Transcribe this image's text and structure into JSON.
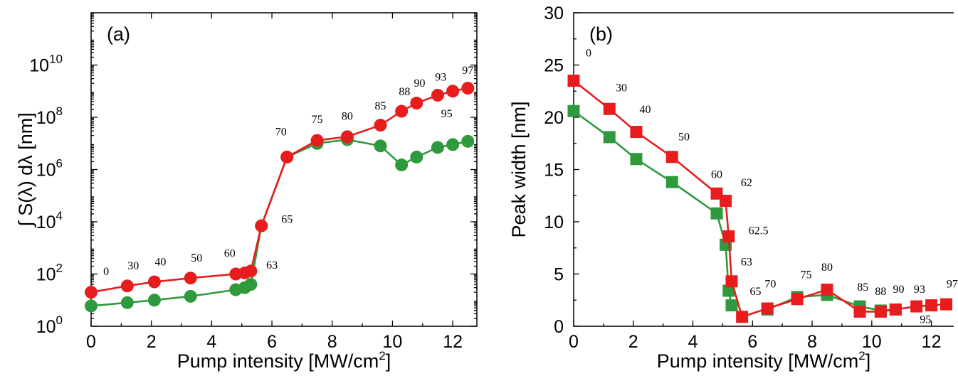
{
  "chart_data": [
    {
      "type": "line",
      "panel_label": "(a)",
      "xlabel": "Pump intensity [MW/cm",
      "xlabel_sup": "2",
      "xlabel_end": "]",
      "ylabel": "∫ S(λ) dλ  [nm]",
      "yscale": "log",
      "xlim": [
        0,
        13
      ],
      "ylim": [
        1,
        100000000000000
      ],
      "xticks": [
        "0",
        "2",
        "4",
        "6",
        "8",
        "10",
        "12"
      ],
      "yticks": [
        {
          "base": "10",
          "exp": "0"
        },
        {
          "base": "10",
          "exp": "2"
        },
        {
          "base": "10",
          "exp": "4"
        },
        {
          "base": "10",
          "exp": "6"
        },
        {
          "base": "10",
          "exp": "8"
        },
        {
          "base": "10",
          "exp": "10"
        }
      ],
      "series": [
        {
          "color": "#e81c1c",
          "marker": "circle",
          "x": [
            0,
            1.2,
            2.1,
            3.3,
            4.8,
            5.1,
            5.3,
            5.65,
            6.5,
            7.5,
            8.5,
            9.6,
            10.3,
            10.8,
            11.5,
            12.0,
            12.5
          ],
          "y": [
            20,
            35,
            50,
            70,
            100,
            110,
            130,
            7000,
            3000000,
            13000000,
            18000000,
            50000000,
            170000000,
            350000000,
            700000000,
            1000000000,
            1300000000
          ]
        },
        {
          "color": "#2e9a3d",
          "marker": "circle",
          "x": [
            0,
            1.2,
            2.1,
            3.3,
            4.8,
            5.1,
            5.3,
            5.65,
            6.5,
            7.5,
            8.5,
            9.6,
            10.3,
            10.8,
            11.5,
            12.0,
            12.5
          ],
          "y": [
            6,
            8,
            10,
            14,
            25,
            30,
            40,
            7000,
            3000000,
            10000000,
            14000000,
            8000000,
            1500000,
            3000000,
            7000000,
            9000000,
            12000000
          ]
        }
      ],
      "annotations": [
        {
          "text": "0",
          "x": 0.5,
          "y": 90
        },
        {
          "text": "30",
          "x": 1.4,
          "y": 150
        },
        {
          "text": "40",
          "x": 2.3,
          "y": 210
        },
        {
          "text": "50",
          "x": 3.5,
          "y": 300
        },
        {
          "text": "60",
          "x": 4.6,
          "y": 450
        },
        {
          "text": "63",
          "x": 6.0,
          "y": 160
        },
        {
          "text": "65",
          "x": 6.5,
          "y": 9000
        },
        {
          "text": "70",
          "x": 6.3,
          "y": 20000000
        },
        {
          "text": "75",
          "x": 7.5,
          "y": 60000000
        },
        {
          "text": "80",
          "x": 8.5,
          "y": 80000000
        },
        {
          "text": "85",
          "x": 9.6,
          "y": 200000000
        },
        {
          "text": "88",
          "x": 10.4,
          "y": 700000000
        },
        {
          "text": "90",
          "x": 10.9,
          "y": 1500000000
        },
        {
          "text": "93",
          "x": 11.6,
          "y": 2500000000
        },
        {
          "text": "95",
          "x": 11.8,
          "y": 100000000
        },
        {
          "text": "97",
          "x": 12.5,
          "y": 4500000000
        }
      ]
    },
    {
      "type": "line",
      "panel_label": "(b)",
      "xlabel": "Pump intensity [MW/cm",
      "xlabel_sup": "2",
      "xlabel_end": "]",
      "ylabel": "Peak width [nm]",
      "yscale": "linear",
      "xlim": [
        0,
        13
      ],
      "ylim": [
        0,
        30
      ],
      "xticks": [
        "0",
        "2",
        "4",
        "6",
        "8",
        "10",
        "12"
      ],
      "yticks": [
        "0",
        "5",
        "10",
        "15",
        "20",
        "25",
        "30"
      ],
      "series": [
        {
          "color": "#e81c1c",
          "marker": "square",
          "x": [
            0,
            1.2,
            2.1,
            3.3,
            4.8,
            5.1,
            5.2,
            5.3,
            5.65,
            6.5,
            7.5,
            8.5,
            9.6,
            10.3,
            10.8,
            11.5,
            12.0,
            12.5
          ],
          "y": [
            23.5,
            20.8,
            18.6,
            16.2,
            12.7,
            12.0,
            8.6,
            4.3,
            0.9,
            1.7,
            2.6,
            3.5,
            1.4,
            1.4,
            1.6,
            1.9,
            2.0,
            2.1
          ]
        },
        {
          "color": "#2e9a3d",
          "marker": "square",
          "x": [
            0,
            1.2,
            2.1,
            3.3,
            4.8,
            5.1,
            5.2,
            5.3
          ],
          "y": [
            20.6,
            18.1,
            16.0,
            13.8,
            10.8,
            7.8,
            3.4,
            2.0
          ]
        },
        {
          "color": "#2e9a3d",
          "marker": "square",
          "x": [
            6.5,
            7.5,
            8.5,
            9.6,
            10.3,
            10.8
          ],
          "y": [
            1.6,
            2.8,
            3.0,
            1.9,
            1.5,
            1.6
          ]
        }
      ],
      "annotations": [
        {
          "text": "0",
          "x": 0.5,
          "y": 25.8
        },
        {
          "text": "30",
          "x": 1.6,
          "y": 22.5
        },
        {
          "text": "40",
          "x": 2.4,
          "y": 20.4
        },
        {
          "text": "50",
          "x": 3.7,
          "y": 17.8
        },
        {
          "text": "60",
          "x": 4.8,
          "y": 14.2
        },
        {
          "text": "62",
          "x": 5.8,
          "y": 13.4
        },
        {
          "text": "62.5",
          "x": 6.2,
          "y": 8.8
        },
        {
          "text": "63",
          "x": 5.8,
          "y": 5.8
        },
        {
          "text": "65",
          "x": 6.1,
          "y": 3.0
        },
        {
          "text": "70",
          "x": 6.6,
          "y": 3.7
        },
        {
          "text": "75",
          "x": 7.8,
          "y": 4.6
        },
        {
          "text": "80",
          "x": 8.5,
          "y": 5.3
        },
        {
          "text": "85",
          "x": 9.7,
          "y": 3.4
        },
        {
          "text": "88",
          "x": 10.3,
          "y": 3.0
        },
        {
          "text": "90",
          "x": 10.9,
          "y": 3.2
        },
        {
          "text": "93",
          "x": 11.6,
          "y": 3.2
        },
        {
          "text": "95",
          "x": 11.8,
          "y": 0.3
        },
        {
          "text": "97",
          "x": 12.7,
          "y": 3.7
        }
      ]
    }
  ]
}
